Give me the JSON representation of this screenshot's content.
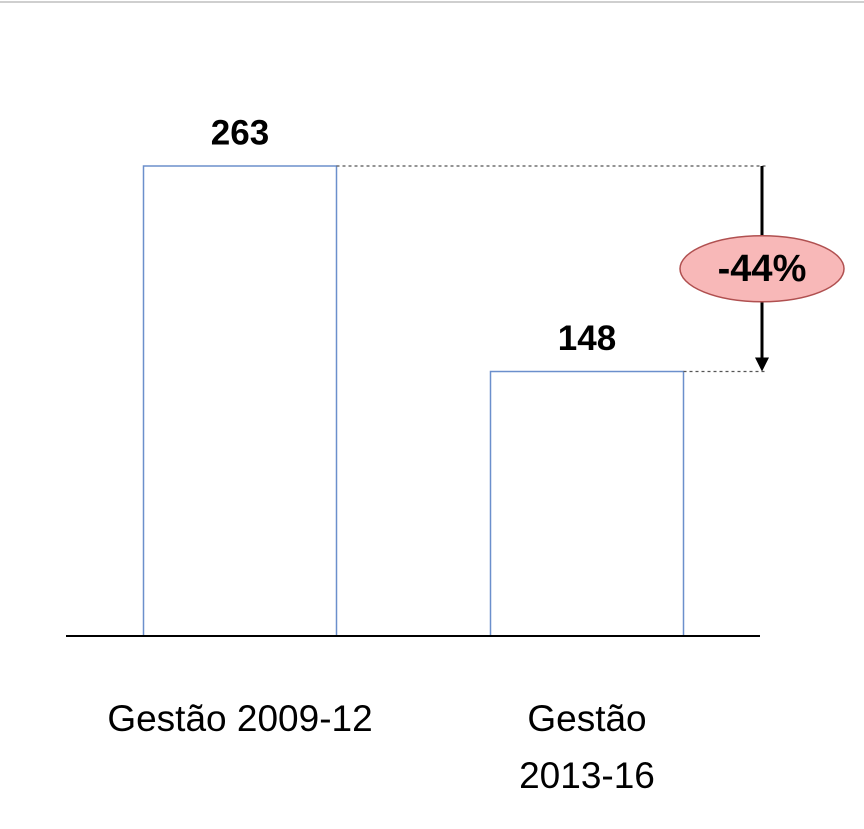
{
  "chart_data": {
    "type": "bar",
    "categories": [
      "Gestão 2009-12",
      "Gestão 2013-16"
    ],
    "values": [
      263,
      148
    ],
    "color": "#6b8fcc",
    "annotation": "-44%"
  }
}
